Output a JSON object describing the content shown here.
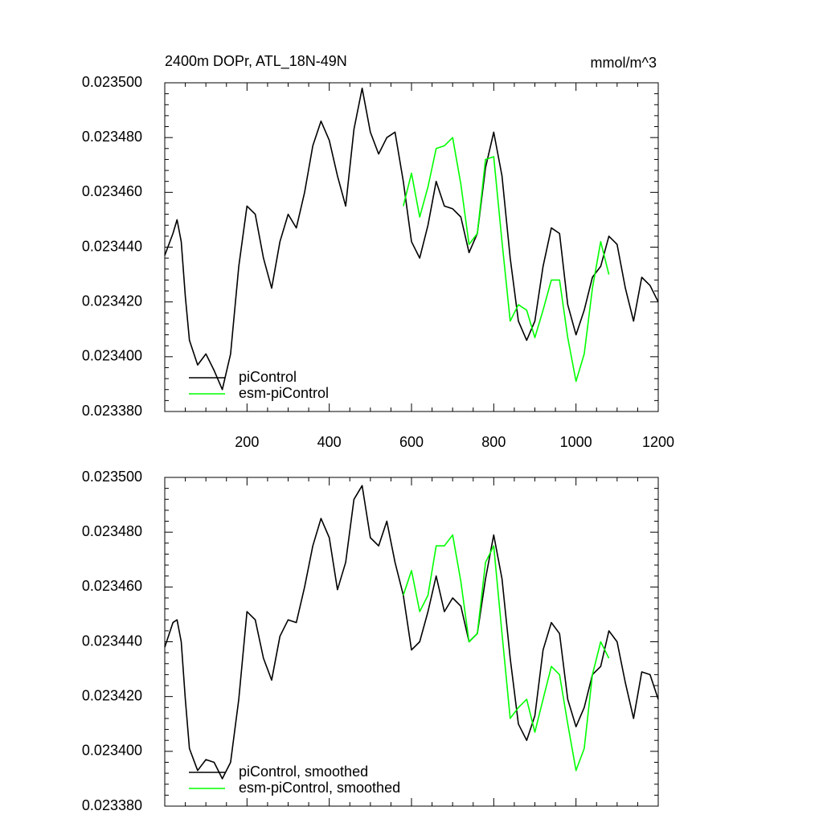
{
  "chart_data": [
    {
      "type": "line",
      "title": "2400m DOPr, ATL_18N-49N",
      "units": "mmol/m^3",
      "xlim": [
        0,
        1200
      ],
      "xticks": [
        200,
        400,
        600,
        800,
        1000,
        1200
      ],
      "ylim": [
        0.02338,
        0.0235
      ],
      "yticks": [
        {
          "value": 0.02338,
          "label": "0.023380"
        },
        {
          "value": 0.0234,
          "label": "0.023400"
        },
        {
          "value": 0.02342,
          "label": "0.023420"
        },
        {
          "value": 0.02344,
          "label": "0.023440"
        },
        {
          "value": 0.02346,
          "label": "0.023460"
        },
        {
          "value": 0.02348,
          "label": "0.023480"
        },
        {
          "value": 0.0235,
          "label": "0.023500"
        }
      ],
      "series": [
        {
          "name": "piControl",
          "color": "#000000",
          "x": [
            0,
            20,
            30,
            40,
            50,
            60,
            80,
            100,
            120,
            140,
            160,
            180,
            200,
            220,
            240,
            260,
            280,
            300,
            320,
            340,
            360,
            380,
            400,
            420,
            440,
            460,
            480,
            500,
            520,
            540,
            560,
            580,
            600,
            620,
            640,
            660,
            680,
            700,
            720,
            740,
            760,
            780,
            800,
            820,
            840,
            860,
            880,
            900,
            920,
            940,
            960,
            980,
            1000,
            1020,
            1040,
            1060,
            1080,
            1100,
            1120,
            1140,
            1160,
            1180,
            1200
          ],
          "values": [
            0.023437,
            0.023445,
            0.02345,
            0.023442,
            0.023422,
            0.023406,
            0.023397,
            0.023401,
            0.023395,
            0.023388,
            0.023401,
            0.023433,
            0.023455,
            0.023452,
            0.023436,
            0.023425,
            0.023442,
            0.023452,
            0.023447,
            0.02346,
            0.023477,
            0.023486,
            0.023479,
            0.023466,
            0.023455,
            0.023483,
            0.023498,
            0.023482,
            0.023474,
            0.02348,
            0.023482,
            0.023464,
            0.023442,
            0.023436,
            0.023448,
            0.023464,
            0.023455,
            0.023454,
            0.023451,
            0.023438,
            0.023445,
            0.023469,
            0.023482,
            0.023466,
            0.023436,
            0.023413,
            0.023406,
            0.023413,
            0.023433,
            0.023447,
            0.023445,
            0.023419,
            0.023408,
            0.023417,
            0.023429,
            0.023433,
            0.023444,
            0.023441,
            0.023425,
            0.023413,
            0.023429,
            0.023426,
            0.02342
          ]
        },
        {
          "name": "esm-piControl",
          "color": "#00ff00",
          "x": [
            580,
            600,
            620,
            640,
            660,
            680,
            700,
            720,
            740,
            760,
            780,
            800,
            820,
            840,
            860,
            880,
            900,
            920,
            940,
            960,
            980,
            1000,
            1020,
            1040,
            1060,
            1080
          ],
          "values": [
            0.023455,
            0.023467,
            0.023451,
            0.023462,
            0.023476,
            0.023477,
            0.02348,
            0.023463,
            0.023441,
            0.023445,
            0.023472,
            0.023473,
            0.023442,
            0.023413,
            0.023419,
            0.023417,
            0.023407,
            0.023417,
            0.023428,
            0.023428,
            0.023407,
            0.023391,
            0.023401,
            0.023425,
            0.023442,
            0.02343
          ]
        }
      ]
    },
    {
      "type": "line",
      "xlim": [
        0,
        1200
      ],
      "ylim": [
        0.02338,
        0.0235
      ],
      "yticks": [
        {
          "value": 0.02338,
          "label": "0.023380"
        },
        {
          "value": 0.0234,
          "label": "0.023400"
        },
        {
          "value": 0.02342,
          "label": "0.023420"
        },
        {
          "value": 0.02344,
          "label": "0.023440"
        },
        {
          "value": 0.02346,
          "label": "0.023460"
        },
        {
          "value": 0.02348,
          "label": "0.023480"
        },
        {
          "value": 0.0235,
          "label": "0.023500"
        }
      ],
      "series": [
        {
          "name": "piControl, smoothed",
          "color": "#000000",
          "x": [
            0,
            20,
            30,
            40,
            50,
            60,
            80,
            100,
            120,
            140,
            160,
            180,
            200,
            220,
            240,
            260,
            280,
            300,
            320,
            340,
            360,
            380,
            400,
            420,
            440,
            460,
            480,
            500,
            520,
            540,
            560,
            580,
            600,
            620,
            640,
            660,
            680,
            700,
            720,
            740,
            760,
            780,
            800,
            820,
            840,
            860,
            880,
            900,
            920,
            940,
            960,
            980,
            1000,
            1020,
            1040,
            1060,
            1080,
            1100,
            1120,
            1140,
            1160,
            1180,
            1200
          ],
          "values": [
            0.023438,
            0.023447,
            0.023448,
            0.02344,
            0.023419,
            0.023401,
            0.023393,
            0.023397,
            0.023396,
            0.02339,
            0.023396,
            0.023419,
            0.023451,
            0.023448,
            0.023434,
            0.023426,
            0.023442,
            0.023448,
            0.023447,
            0.02346,
            0.023475,
            0.023485,
            0.023478,
            0.023459,
            0.023469,
            0.023492,
            0.023497,
            0.023478,
            0.023475,
            0.023484,
            0.023469,
            0.023457,
            0.023437,
            0.02344,
            0.023451,
            0.023464,
            0.023451,
            0.023456,
            0.023453,
            0.02344,
            0.023443,
            0.023463,
            0.023479,
            0.023463,
            0.023434,
            0.02341,
            0.023404,
            0.023413,
            0.023437,
            0.023447,
            0.023443,
            0.023419,
            0.023409,
            0.023416,
            0.023428,
            0.023431,
            0.023444,
            0.02344,
            0.023425,
            0.023412,
            0.023429,
            0.023428,
            0.023419
          ]
        },
        {
          "name": "esm-piControl, smoothed",
          "color": "#00ff00",
          "x": [
            580,
            600,
            620,
            640,
            660,
            680,
            700,
            720,
            740,
            760,
            780,
            800,
            820,
            840,
            860,
            880,
            900,
            920,
            940,
            960,
            980,
            1000,
            1020,
            1040,
            1060,
            1080
          ],
          "values": [
            0.023457,
            0.023466,
            0.023451,
            0.023457,
            0.023475,
            0.023475,
            0.023479,
            0.023462,
            0.02344,
            0.023443,
            0.023469,
            0.023475,
            0.023443,
            0.023412,
            0.023416,
            0.023419,
            0.023407,
            0.023419,
            0.023431,
            0.023428,
            0.02341,
            0.023393,
            0.023401,
            0.023428,
            0.02344,
            0.023434
          ]
        }
      ]
    }
  ]
}
